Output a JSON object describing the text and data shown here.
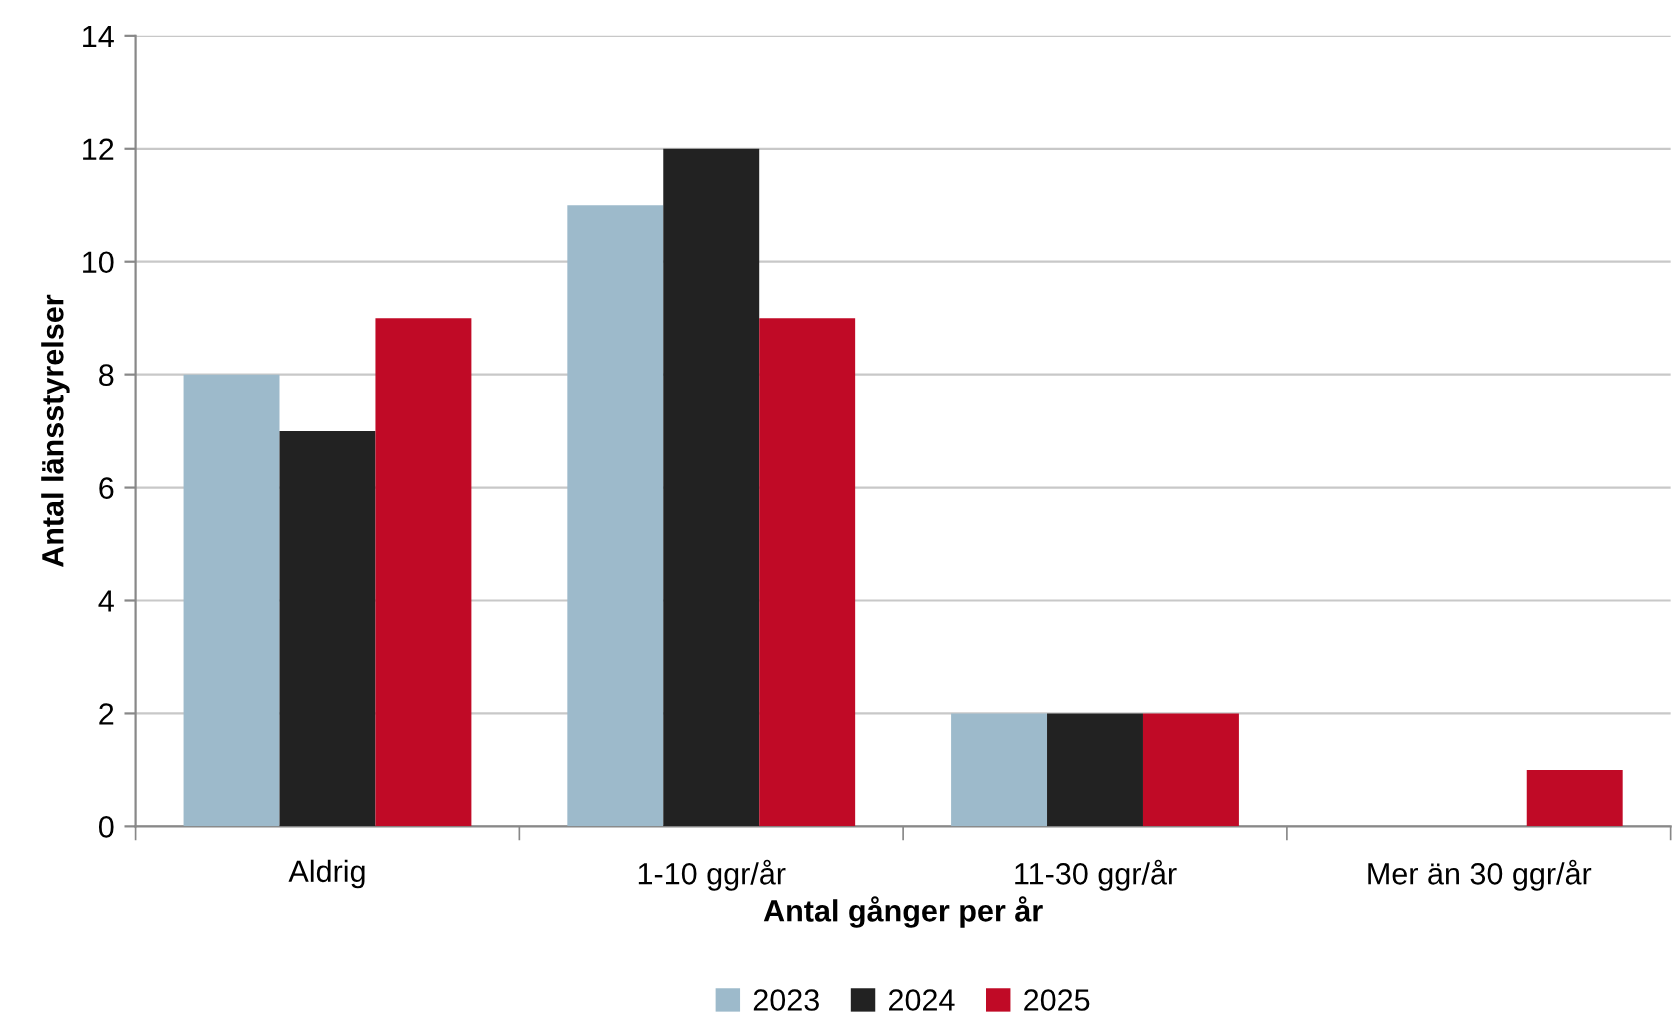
{
  "chart_data": {
    "type": "bar",
    "categories": [
      "Aldrig",
      "1-10 ggr/år",
      "11-30 ggr/år",
      "Mer än 30 ggr/år"
    ],
    "xlabel": "Antal gånger per år",
    "ylabel": "Antal länsstyrelser",
    "series": [
      {
        "name": "2023",
        "color": "#9dbacb",
        "values": [
          8,
          11,
          2,
          0
        ]
      },
      {
        "name": "2024",
        "color": "#222222",
        "values": [
          7,
          12,
          2,
          0
        ]
      },
      {
        "name": "2025",
        "color": "#c00a26",
        "values": [
          9,
          9,
          2,
          1
        ]
      }
    ],
    "ylim": [
      0,
      14
    ],
    "yticks": [
      0,
      2,
      4,
      6,
      8,
      10,
      12,
      14
    ],
    "grid": "y",
    "legend": "bottom"
  }
}
